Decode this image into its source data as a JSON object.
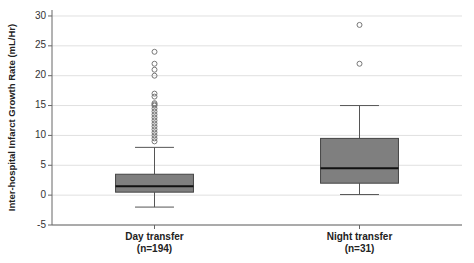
{
  "chart_data": {
    "type": "box",
    "ylabel": "Inter-hospital Infarct Growth Rate (mL/Hr)",
    "categories": [
      "Day transfer\n(n=194)",
      "Night transfer\n(n=31)"
    ],
    "boxes": [
      {
        "median": 1.5,
        "q1": 0.5,
        "q3": 3.5,
        "whisker_low": -2.0,
        "whisker_high": 8.0,
        "outliers": [
          9.0,
          9.5,
          10.0,
          10.5,
          11.0,
          11.5,
          12.0,
          12.5,
          13.0,
          13.5,
          14.0,
          14.5,
          15.0,
          15.2,
          15.4,
          16.5,
          17.0,
          20.0,
          21.0,
          22.0,
          24.0
        ]
      },
      {
        "median": 4.5,
        "q1": 2.0,
        "q3": 9.5,
        "whisker_low": 0.1,
        "whisker_high": 15.0,
        "outliers": [
          22.0,
          28.5
        ]
      }
    ],
    "color": "#7f7f7f",
    "ylim": [
      -5,
      31
    ],
    "yticks": [
      -5,
      0,
      5,
      10,
      15,
      20,
      25,
      30
    ],
    "grid": true
  }
}
